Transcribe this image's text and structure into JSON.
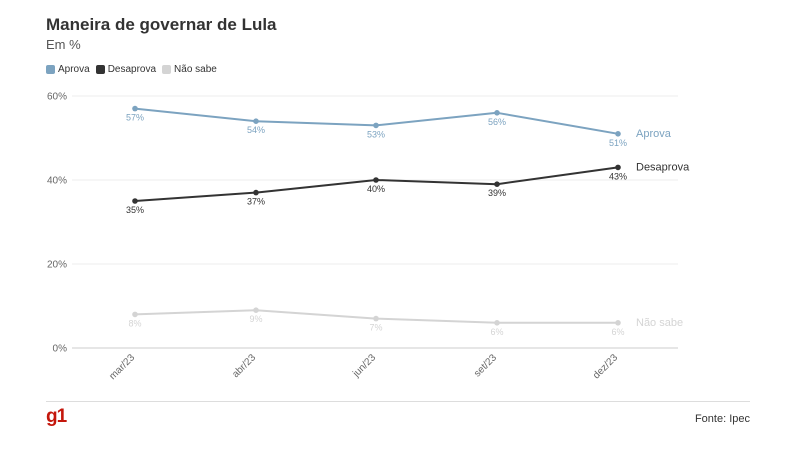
{
  "header": {
    "title": "Maneira de governar de Lula",
    "subtitle": "Em %"
  },
  "footer": {
    "logo": "g1",
    "source": "Fonte: Ipec"
  },
  "chart_data": {
    "type": "line",
    "title": "Maneira de governar de Lula",
    "subtitle": "Em %",
    "categories": [
      "mar/23",
      "abr/23",
      "jun/23",
      "set/23",
      "dez/23"
    ],
    "ylim": [
      0,
      60
    ],
    "yticks": [
      "0%",
      "20%",
      "40%",
      "60%"
    ],
    "ytick_values": [
      0,
      20,
      40,
      60
    ],
    "grid": true,
    "legend_position": "top-left",
    "series": [
      {
        "name": "Aprova",
        "color": "#7ca3c0",
        "values": [
          57,
          54,
          53,
          56,
          51
        ],
        "labels": [
          "57%",
          "54%",
          "53%",
          "56%",
          "51%"
        ]
      },
      {
        "name": "Desaprova",
        "color": "#333333",
        "values": [
          35,
          37,
          40,
          39,
          43
        ],
        "labels": [
          "35%",
          "37%",
          "40%",
          "39%",
          "43%"
        ]
      },
      {
        "name": "Não sabe",
        "color": "#d4d4d4",
        "values": [
          8,
          9,
          7,
          6,
          6
        ],
        "labels": [
          "8%",
          "9%",
          "7%",
          "6%",
          "6%"
        ]
      }
    ]
  }
}
